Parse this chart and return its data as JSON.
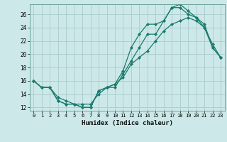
{
  "title": "",
  "xlabel": "Humidex (Indice chaleur)",
  "ylabel": "",
  "background_color": "#cce8e8",
  "grid_color": "#aacccc",
  "line_color": "#1a7a6e",
  "x_ticks": [
    0,
    1,
    2,
    3,
    4,
    5,
    6,
    7,
    8,
    9,
    10,
    11,
    12,
    13,
    14,
    15,
    16,
    17,
    18,
    19,
    20,
    21,
    22,
    23
  ],
  "y_ticks": [
    12,
    14,
    16,
    18,
    20,
    22,
    24,
    26
  ],
  "xlim": [
    -0.5,
    23.5
  ],
  "ylim": [
    11.5,
    27.5
  ],
  "series1_x": [
    0,
    1,
    2,
    3,
    4,
    5,
    6,
    7,
    8,
    9,
    10,
    11,
    12,
    13,
    14,
    15,
    16,
    17,
    18,
    19,
    20,
    21,
    22,
    23
  ],
  "series1_y": [
    16.0,
    15.0,
    15.0,
    13.0,
    12.5,
    12.5,
    12.0,
    12.0,
    14.5,
    15.0,
    15.0,
    17.0,
    19.0,
    21.0,
    23.0,
    23.0,
    25.0,
    27.0,
    27.0,
    26.0,
    25.5,
    24.0,
    21.0,
    19.5
  ],
  "series2_x": [
    0,
    1,
    2,
    3,
    4,
    5,
    6,
    7,
    8,
    9,
    10,
    11,
    12,
    13,
    14,
    15,
    16,
    17,
    18,
    19,
    20,
    21,
    22,
    23
  ],
  "series2_y": [
    16.0,
    15.0,
    15.0,
    13.0,
    12.5,
    12.5,
    12.0,
    12.0,
    14.5,
    15.0,
    15.5,
    17.5,
    21.0,
    23.0,
    24.5,
    24.5,
    25.0,
    27.0,
    27.5,
    26.5,
    25.5,
    24.5,
    21.0,
    19.5
  ],
  "series3_x": [
    0,
    1,
    2,
    3,
    4,
    5,
    6,
    7,
    8,
    9,
    10,
    11,
    12,
    13,
    14,
    15,
    16,
    17,
    18,
    19,
    20,
    21,
    22,
    23
  ],
  "series3_y": [
    16.0,
    15.0,
    15.0,
    13.5,
    13.0,
    12.5,
    12.5,
    12.5,
    14.0,
    15.0,
    15.5,
    16.5,
    18.5,
    19.5,
    20.5,
    22.0,
    23.5,
    24.5,
    25.0,
    25.5,
    25.0,
    24.0,
    21.5,
    19.5
  ]
}
